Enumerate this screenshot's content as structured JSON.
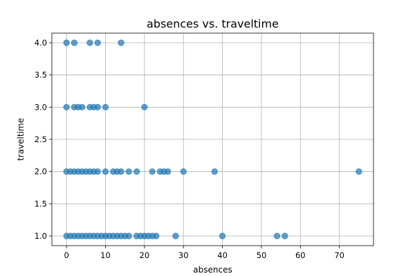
{
  "chart_data": {
    "type": "scatter",
    "title": "absences vs. traveltime",
    "xlabel": "absences",
    "ylabel": "traveltime",
    "xlim": [
      -3.75,
      78.75
    ],
    "ylim": [
      0.85,
      4.15
    ],
    "xticks": [
      0,
      10,
      20,
      30,
      40,
      50,
      60,
      70
    ],
    "yticks": [
      1.0,
      1.5,
      2.0,
      2.5,
      3.0,
      3.5,
      4.0
    ],
    "grid": true,
    "color": "#1f77b4",
    "points": [
      [
        0,
        4
      ],
      [
        2,
        4
      ],
      [
        6,
        4
      ],
      [
        8,
        4
      ],
      [
        14,
        4
      ],
      [
        0,
        3
      ],
      [
        2,
        3
      ],
      [
        3,
        3
      ],
      [
        4,
        3
      ],
      [
        6,
        3
      ],
      [
        7,
        3
      ],
      [
        8,
        3
      ],
      [
        10,
        3
      ],
      [
        20,
        3
      ],
      [
        0,
        2
      ],
      [
        1,
        2
      ],
      [
        2,
        2
      ],
      [
        3,
        2
      ],
      [
        4,
        2
      ],
      [
        5,
        2
      ],
      [
        6,
        2
      ],
      [
        7,
        2
      ],
      [
        8,
        2
      ],
      [
        10,
        2
      ],
      [
        12,
        2
      ],
      [
        13,
        2
      ],
      [
        14,
        2
      ],
      [
        16,
        2
      ],
      [
        18,
        2
      ],
      [
        22,
        2
      ],
      [
        24,
        2
      ],
      [
        25,
        2
      ],
      [
        26,
        2
      ],
      [
        30,
        2
      ],
      [
        38,
        2
      ],
      [
        75,
        2
      ],
      [
        0,
        1
      ],
      [
        1,
        1
      ],
      [
        2,
        1
      ],
      [
        3,
        1
      ],
      [
        4,
        1
      ],
      [
        5,
        1
      ],
      [
        6,
        1
      ],
      [
        7,
        1
      ],
      [
        8,
        1
      ],
      [
        9,
        1
      ],
      [
        10,
        1
      ],
      [
        11,
        1
      ],
      [
        12,
        1
      ],
      [
        13,
        1
      ],
      [
        14,
        1
      ],
      [
        15,
        1
      ],
      [
        16,
        1
      ],
      [
        18,
        1
      ],
      [
        19,
        1
      ],
      [
        20,
        1
      ],
      [
        21,
        1
      ],
      [
        22,
        1
      ],
      [
        23,
        1
      ],
      [
        28,
        1
      ],
      [
        40,
        1
      ],
      [
        54,
        1
      ],
      [
        56,
        1
      ]
    ]
  }
}
